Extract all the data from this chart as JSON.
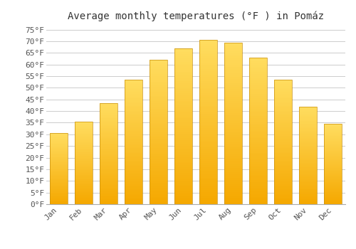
{
  "title": "Average monthly temperatures (°F ) in Pomáz",
  "months": [
    "Jan",
    "Feb",
    "Mar",
    "Apr",
    "May",
    "Jun",
    "Jul",
    "Aug",
    "Sep",
    "Oct",
    "Nov",
    "Dec"
  ],
  "values": [
    30.5,
    35.5,
    43.5,
    53.5,
    62.0,
    67.0,
    70.5,
    69.5,
    63.0,
    53.5,
    42.0,
    34.5
  ],
  "bar_color_bottom": "#F5A800",
  "bar_color_top": "#FFDD60",
  "bar_edge_color": "#C89010",
  "background_color": "#ffffff",
  "grid_color": "#cccccc",
  "yticks": [
    0,
    5,
    10,
    15,
    20,
    25,
    30,
    35,
    40,
    45,
    50,
    55,
    60,
    65,
    70,
    75
  ],
  "ylim": [
    0,
    77
  ],
  "title_fontsize": 10,
  "tick_fontsize": 8,
  "title_color": "#333333",
  "tick_color": "#555555",
  "bar_width": 0.7
}
